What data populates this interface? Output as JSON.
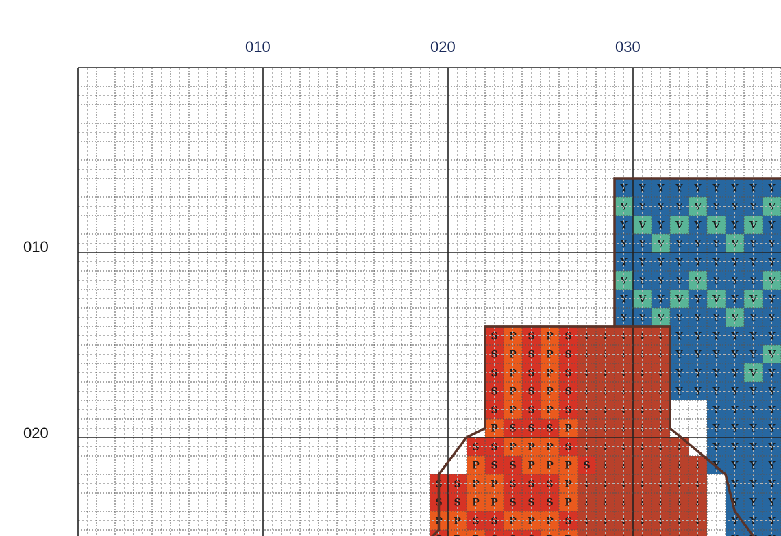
{
  "top_labels": [
    {
      "text": "010",
      "col": 10
    },
    {
      "text": "020",
      "col": 20
    },
    {
      "text": "030",
      "col": 30
    }
  ],
  "left_labels": [
    {
      "text": "010",
      "row": 10
    },
    {
      "text": "020",
      "row": 20
    }
  ],
  "colors": {
    "blue": "#2767a0",
    "teal": "#59b597",
    "red": "#d63325",
    "orange": "#ea5a1d",
    "brown": "#b8412b",
    "outline": "#5a3328",
    "major_line": "#222222",
    "minor_line": "#555555",
    "faint_line": "#b5b5b5",
    "symbol_dark": "#1c1c1c"
  },
  "symbols": {
    "Y": "Y",
    "V": "V",
    "S": "S",
    "P": "P",
    "arrow": "↓"
  },
  "pattern": {
    "blue_rows": [
      "YYYYYYYYY",
      "VYYYVYYYV",
      "YVYVYVYVY",
      "YYVYYYVYY",
      "YYYYYYYYY",
      "VYYYVYYYV",
      "YVYVYVYVY",
      "YYVYYYVYY",
      "YYYYYYYYYY",
      "YYYYYVYYVY",
      "YYYYVYVYVV",
      "YYYYYYYYVY",
      "YYYYYYYYYYYY",
      "YYYYYVYVYVYV",
      "YYYYYYYYYVYY",
      "YYYYYYYYYYYY",
      "YYYYYYYYYYYYY",
      "YYYYYYYYYYYVY",
      "YYYYYYYYYYYYV",
      "YYYYYYYYYYYYY"
    ],
    "warm_rows": [
      "SPSPS~~~~~",
      "SPSPS~~~~~",
      "SPSPS~~~~~",
      "SPSPS~~~~~",
      "SPSPS~~~~~",
      "PSSSP~~~~~",
      "SSPPPS~~~~~~",
      "PSSPPPS~~~~~~",
      "SSPPSSSP~~~~~~~",
      "SSPPSSSP~~~~~~~",
      "PPSSPPPS~~~~~~~",
      "SPPSSSPP~~~~~~~"
    ]
  }
}
